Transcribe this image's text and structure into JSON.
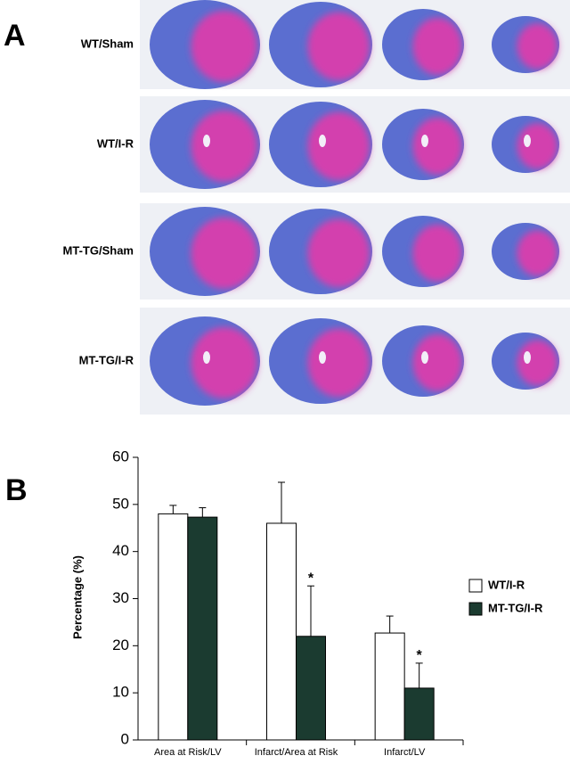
{
  "panel_a": {
    "label": "A",
    "rows": [
      "WT/Sham",
      "WT/I-R",
      "MT-TG/Sham",
      "MT-TG/I-R"
    ]
  },
  "chart_data": {
    "label": "B",
    "type": "bar",
    "ylabel": "Percentage (%)",
    "categories": [
      "Area at Risk/LV",
      "Infarct/Area at Risk",
      "Infarct/LV"
    ],
    "series": [
      {
        "name": "WT/I-R",
        "color": "#ffffff",
        "values": [
          48,
          46,
          22.7
        ],
        "errors": [
          1.8,
          8.7,
          3.6
        ]
      },
      {
        "name": "MT-TG/I-R",
        "color": "#1b3b30",
        "values": [
          47.3,
          22,
          11
        ],
        "errors": [
          2,
          10.7,
          5.3
        ],
        "annotations": [
          null,
          "*",
          "*"
        ]
      }
    ],
    "ylim": [
      0,
      60
    ],
    "yticks": [
      0,
      10,
      20,
      30,
      40,
      50,
      60
    ]
  }
}
